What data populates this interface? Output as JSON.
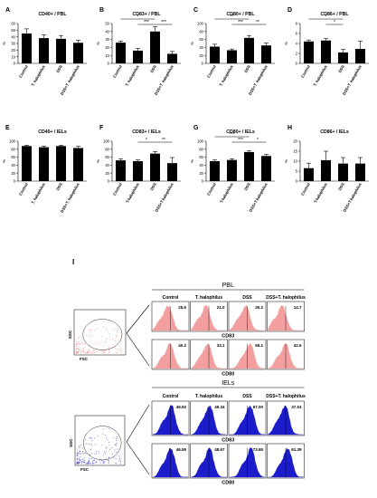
{
  "chart_data": [
    {
      "type": "bar",
      "panel": "A",
      "title": "CD40+ / PBL",
      "ylabel": "%",
      "ylim": [
        0,
        60
      ],
      "ticks": [
        0,
        10,
        20,
        30,
        40,
        50,
        60
      ],
      "categories": [
        "Control",
        "T. halophilus",
        "DSS",
        "DSS+T. halophilus"
      ],
      "values": [
        45,
        38,
        37,
        31
      ],
      "errors": [
        7,
        5,
        5,
        4
      ],
      "sig": []
    },
    {
      "type": "bar",
      "panel": "B",
      "title": "CD83+ / PBL",
      "ylabel": "%",
      "ylim": [
        0,
        50
      ],
      "ticks": [
        0,
        10,
        20,
        30,
        40,
        50
      ],
      "categories": [
        "Control",
        "T. halophilus",
        "DSS",
        "DSS+T. halophilus"
      ],
      "values": [
        26,
        16,
        40,
        12
      ],
      "errors": [
        2,
        3,
        6,
        3
      ],
      "sig": [
        {
          "from": 0,
          "to": 2,
          "level": 2,
          "label": "*"
        },
        {
          "from": 1,
          "to": 2,
          "level": 1,
          "label": "***"
        },
        {
          "from": 2,
          "to": 3,
          "level": 1,
          "label": "***"
        }
      ]
    },
    {
      "type": "bar",
      "panel": "C",
      "title": "CD80+ / PBL",
      "ylabel": "%",
      "ylim": [
        0,
        100
      ],
      "ticks": [
        0,
        20,
        40,
        60,
        80,
        100
      ],
      "categories": [
        "Control",
        "T. halophilus",
        "DSS",
        "DSS+T. halophilus"
      ],
      "values": [
        42,
        33,
        64,
        45
      ],
      "errors": [
        6,
        3,
        6,
        6
      ],
      "sig": [
        {
          "from": 0,
          "to": 2,
          "level": 2,
          "label": "**"
        },
        {
          "from": 1,
          "to": 2,
          "level": 1,
          "label": "***"
        },
        {
          "from": 2,
          "to": 3,
          "level": 1,
          "label": "**"
        }
      ]
    },
    {
      "type": "bar",
      "panel": "D",
      "title": "CD86+ / PBL",
      "ylabel": "%",
      "ylim": [
        0,
        8
      ],
      "ticks": [
        0,
        2,
        4,
        6,
        8
      ],
      "categories": [
        "Control",
        "T. halophilus",
        "DSS",
        "DSS+T. halophilus"
      ],
      "values": [
        4.4,
        4.6,
        2.2,
        2.9
      ],
      "errors": [
        0.3,
        0.4,
        0.6,
        1.6
      ],
      "sig": [
        {
          "from": 0,
          "to": 2,
          "level": 2,
          "label": "*"
        },
        {
          "from": 1,
          "to": 2,
          "level": 1,
          "label": "*"
        }
      ]
    },
    {
      "type": "bar",
      "panel": "E",
      "title": "CD40+ / IELs",
      "ylabel": "%",
      "ylim": [
        0,
        100
      ],
      "ticks": [
        0,
        20,
        40,
        60,
        80,
        100
      ],
      "categories": [
        "Control",
        "T. halophilus",
        "DSS",
        "DSS+T. halophilus"
      ],
      "values": [
        88,
        85,
        88,
        83
      ],
      "errors": [
        2,
        3,
        2,
        4
      ],
      "sig": []
    },
    {
      "type": "bar",
      "panel": "F",
      "title": "CD83+ / IELs",
      "ylabel": "%",
      "ylim": [
        0,
        100
      ],
      "ticks": [
        0,
        20,
        40,
        60,
        80,
        100
      ],
      "categories": [
        "Control",
        "T.halophilus",
        "DSS",
        "DSS+T.halophilus"
      ],
      "values": [
        52,
        50,
        69,
        45
      ],
      "errors": [
        4,
        3,
        5,
        14
      ],
      "sig": [
        {
          "from": 1,
          "to": 2,
          "level": 1,
          "label": "*"
        },
        {
          "from": 2,
          "to": 3,
          "level": 1,
          "label": "**"
        }
      ]
    },
    {
      "type": "bar",
      "panel": "G",
      "title": "CD80+ / IELs",
      "ylabel": "%",
      "ylim": [
        0,
        100
      ],
      "ticks": [
        0,
        20,
        40,
        60,
        80,
        100
      ],
      "categories": [
        "Control",
        "T.halophilus",
        "DSS",
        "DSS+T.halophilus"
      ],
      "values": [
        50,
        53,
        73,
        63
      ],
      "errors": [
        3,
        3,
        3,
        4
      ],
      "sig": [
        {
          "from": 0,
          "to": 2,
          "level": 2,
          "label": "***"
        },
        {
          "from": 1,
          "to": 2,
          "level": 1,
          "label": "***"
        },
        {
          "from": 2,
          "to": 3,
          "level": 1,
          "label": "*"
        }
      ]
    },
    {
      "type": "bar",
      "panel": "H",
      "title": "CD86+ / IELs",
      "ylabel": "%",
      "ylim": [
        0,
        20
      ],
      "ticks": [
        0,
        5,
        10,
        15,
        20
      ],
      "categories": [
        "Control",
        "T.halophilus",
        "DSS",
        "DSS+T.halophilus"
      ],
      "values": [
        6.5,
        10.5,
        8.8,
        8.8
      ],
      "errors": [
        2.5,
        4.5,
        3,
        3
      ],
      "sig": []
    }
  ],
  "flow": {
    "panel_label": "I",
    "blocks": [
      {
        "title": "PBL",
        "color": "#f08080",
        "columns": [
          "Control",
          "T. halophilus",
          "DSS",
          "DSS+T. halophilus"
        ],
        "rows": [
          {
            "marker": "CD83",
            "values": [
              "25.6",
              "21.0",
              "30.2",
              "14.7"
            ]
          },
          {
            "marker": "CD80",
            "values": [
              "40.2",
              "33.1",
              "65.1",
              "42.6"
            ]
          }
        ],
        "scatter_x": "FSC",
        "scatter_y": "SSC"
      },
      {
        "title": "IELs",
        "color": "#1010c8",
        "columns": [
          "Control",
          "T. halophilus",
          "DSS",
          "DSS+T. halophilus"
        ],
        "rows": [
          {
            "marker": "CD83",
            "values": [
              "49.92",
              "49.34",
              "67.00",
              "37.53"
            ]
          },
          {
            "marker": "CD80",
            "values": [
              "46.55",
              "48.67",
              "73.65",
              "61.39"
            ]
          }
        ],
        "scatter_x": "FSC",
        "scatter_y": "SSC"
      }
    ]
  }
}
